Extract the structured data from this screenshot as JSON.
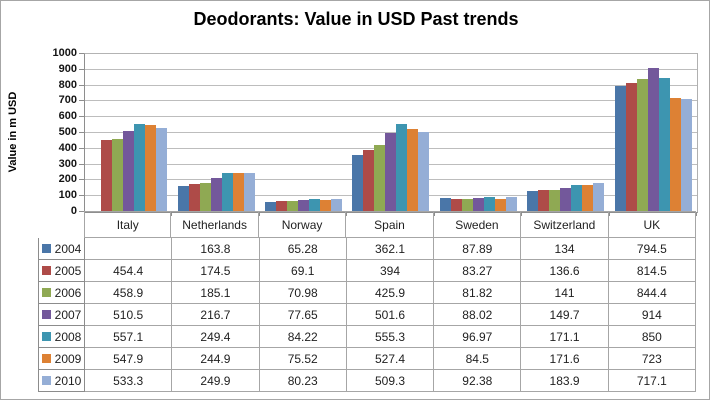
{
  "chart_data": {
    "type": "bar",
    "title": "Deodorants: Value in USD Past trends",
    "xlabel": "",
    "ylabel": "Value in m USD",
    "ylim": [
      0,
      1000
    ],
    "ytick_step": 100,
    "grid": true,
    "legend_position": "left-of-data-table",
    "categories": [
      "Italy",
      "Netherlands",
      "Norway",
      "Spain",
      "Sweden",
      "Switzerland",
      "UK"
    ],
    "series": [
      {
        "name": "2004",
        "color": "#4a76a8",
        "values": [
          null,
          163.8,
          65.28,
          362.1,
          87.89,
          134,
          794.5
        ]
      },
      {
        "name": "2005",
        "color": "#ae4b48",
        "values": [
          454.4,
          174.5,
          69.1,
          394,
          83.27,
          136.6,
          814.5
        ]
      },
      {
        "name": "2006",
        "color": "#8fa953",
        "values": [
          458.9,
          185.1,
          70.98,
          425.9,
          81.82,
          141,
          844.4
        ]
      },
      {
        "name": "2007",
        "color": "#73589b",
        "values": [
          510.5,
          216.7,
          77.65,
          501.6,
          88.02,
          149.7,
          914
        ]
      },
      {
        "name": "2008",
        "color": "#3d95b0",
        "values": [
          557.1,
          249.4,
          84.22,
          555.3,
          96.97,
          171.1,
          850
        ]
      },
      {
        "name": "2009",
        "color": "#dd8134",
        "values": [
          547.9,
          244.9,
          75.52,
          527.4,
          84.5,
          171.6,
          723
        ]
      },
      {
        "name": "2010",
        "color": "#95aed6",
        "values": [
          533.3,
          249.9,
          80.23,
          509.3,
          92.38,
          183.9,
          717.1
        ]
      }
    ]
  }
}
